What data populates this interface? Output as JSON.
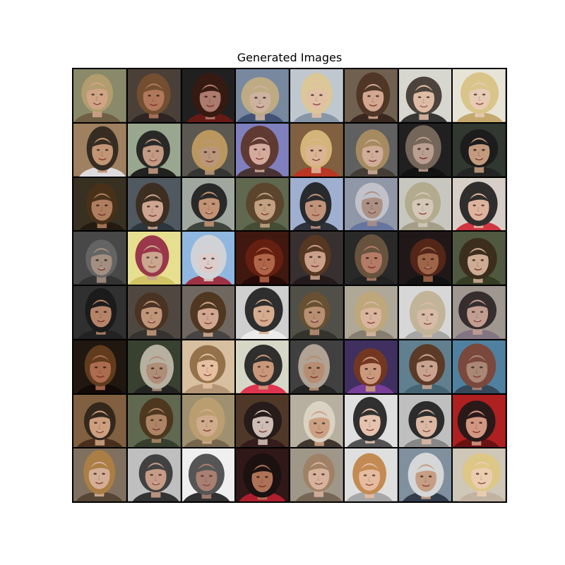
{
  "figure": {
    "title": "Generated Images",
    "grid": {
      "rows": 8,
      "columns": 8
    },
    "tiles": [
      {
        "bg": "#8a8a6a",
        "hair": "#b8a070",
        "skin": "#d9a98a",
        "acc": "#6b5a40"
      },
      {
        "bg": "#4a4038",
        "hair": "#7a5030",
        "skin": "#c08060",
        "acc": "#2a2020"
      },
      {
        "bg": "#202020",
        "hair": "#3a1a10",
        "skin": "#c08878",
        "acc": "#701a14"
      },
      {
        "bg": "#7888a0",
        "hair": "#c8b080",
        "skin": "#d8b8a0",
        "acc": "#3a4a70"
      },
      {
        "bg": "#c0c8d0",
        "hair": "#e0c890",
        "skin": "#e8c0a0",
        "acc": "#8090a0"
      },
      {
        "bg": "#706050",
        "hair": "#4a3020",
        "skin": "#e0b098",
        "acc": "#302018"
      },
      {
        "bg": "#d8d8d0",
        "hair": "#3a3028",
        "skin": "#e0b8a0",
        "acc": "#202020"
      },
      {
        "bg": "#e8e4d8",
        "hair": "#d8c080",
        "skin": "#e8c8b0",
        "acc": "#c0a060"
      },
      {
        "bg": "#a08060",
        "hair": "#2a2018",
        "skin": "#c89878",
        "acc": "#e8e8f0"
      },
      {
        "bg": "#9aa890",
        "hair": "#181818",
        "skin": "#c89880",
        "acc": "#101010"
      },
      {
        "bg": "#5a5850",
        "hair": "#c8a060",
        "skin": "#c8a080",
        "acc": "#303030"
      },
      {
        "bg": "#8080c0",
        "hair": "#5a3020",
        "skin": "#e0b098",
        "acc": "#402820"
      },
      {
        "bg": "#806040",
        "hair": "#e0c080",
        "skin": "#e8c0a0",
        "acc": "#c03020"
      },
      {
        "bg": "#606060",
        "hair": "#b09060",
        "skin": "#e0b8a0",
        "acc": "#403830"
      },
      {
        "bg": "#202020",
        "hair": "#807060",
        "skin": "#d0b0a0",
        "acc": "#101010"
      },
      {
        "bg": "#303830",
        "hair": "#181818",
        "skin": "#d8a888",
        "acc": "#202020"
      },
      {
        "bg": "#383020",
        "hair": "#4a3018",
        "skin": "#c08868",
        "acc": "#201810"
      },
      {
        "bg": "#505860",
        "hair": "#3a2818",
        "skin": "#e0b098",
        "acc": "#283038"
      },
      {
        "bg": "#a0a8a0",
        "hair": "#181818",
        "skin": "#c89070",
        "acc": "#303830"
      },
      {
        "bg": "#606850",
        "hair": "#5a4028",
        "skin": "#d0a888",
        "acc": "#404830"
      },
      {
        "bg": "#a0b0d0",
        "hair": "#181818",
        "skin": "#c89070",
        "acc": "#202028"
      },
      {
        "bg": "#9098a8",
        "hair": "#c8c8d0",
        "skin": "#b09080",
        "acc": "#6070a0"
      },
      {
        "bg": "#c8c8c0",
        "hair": "#b0a888",
        "skin": "#d8c8b8",
        "acc": "#a09880"
      },
      {
        "bg": "#d8d0c8",
        "hair": "#181818",
        "skin": "#e0b098",
        "acc": "#d02030"
      },
      {
        "bg": "#484848",
        "hair": "#686868",
        "skin": "#b09888",
        "acc": "#303030"
      },
      {
        "bg": "#e8e090",
        "hair": "#902040",
        "skin": "#c8a090",
        "acc": "#d0c060"
      },
      {
        "bg": "#90b8e0",
        "hair": "#d8d8d8",
        "skin": "#e8d0c8",
        "acc": "#a02030"
      },
      {
        "bg": "#401810",
        "hair": "#6a2010",
        "skin": "#c07050",
        "acc": "#200808"
      },
      {
        "bg": "#383030",
        "hair": "#5a3820",
        "skin": "#e0b098",
        "acc": "#201818"
      },
      {
        "bg": "#2a2a2a",
        "hair": "#705840",
        "skin": "#c88870",
        "acc": "#202020"
      },
      {
        "bg": "#201818",
        "hair": "#5a2818",
        "skin": "#b07050",
        "acc": "#101010"
      },
      {
        "bg": "#505840",
        "hair": "#3a2818",
        "skin": "#e0b8a0",
        "acc": "#303820"
      },
      {
        "bg": "#303030",
        "hair": "#181818",
        "skin": "#c89070",
        "acc": "#202020"
      },
      {
        "bg": "#504840",
        "hair": "#4a3020",
        "skin": "#d0a080",
        "acc": "#303030"
      },
      {
        "bg": "#706860",
        "hair": "#4a3018",
        "skin": "#e0b098",
        "acc": "#404040"
      },
      {
        "bg": "#d0d0d0",
        "hair": "#181818",
        "skin": "#d8a888",
        "acc": "#f0f0f0"
      },
      {
        "bg": "#505048",
        "hair": "#6a5030",
        "skin": "#c89878",
        "acc": "#303028"
      },
      {
        "bg": "#b0a898",
        "hair": "#c0a878",
        "skin": "#e0b8a0",
        "acc": "#807868"
      },
      {
        "bg": "#d8d8d8",
        "hair": "#c0b090",
        "skin": "#d8b8a0",
        "acc": "#a0a0a0"
      },
      {
        "bg": "#a09890",
        "hair": "#282020",
        "skin": "#c8a090",
        "acc": "#807080"
      },
      {
        "bg": "#201810",
        "hair": "#6a4020",
        "skin": "#c07858",
        "acc": "#100808"
      },
      {
        "bg": "#384030",
        "hair": "#c8c0b0",
        "skin": "#c09880",
        "acc": "#202020"
      },
      {
        "bg": "#d8c0a0",
        "hair": "#8a6840",
        "skin": "#e8c0a0",
        "acc": "#b09070"
      },
      {
        "bg": "#d8d8c8",
        "hair": "#181818",
        "skin": "#c89070",
        "acc": "#e02040"
      },
      {
        "bg": "#404040",
        "hair": "#c0b0a0",
        "skin": "#c89878",
        "acc": "#202020"
      },
      {
        "bg": "#403060",
        "hair": "#7a3818",
        "skin": "#e0a880",
        "acc": "#8040a0"
      },
      {
        "bg": "#608090",
        "hair": "#5a3018",
        "skin": "#d8a890",
        "acc": "#406070"
      },
      {
        "bg": "#5080a0",
        "hair": "#804030",
        "skin": "#b88870",
        "acc": "#304050"
      },
      {
        "bg": "#806040",
        "hair": "#2a2018",
        "skin": "#d8a888",
        "acc": "#402818"
      },
      {
        "bg": "#606850",
        "hair": "#4a3018",
        "skin": "#b88868",
        "acc": "#303828"
      },
      {
        "bg": "#a09070",
        "hair": "#c0a070",
        "skin": "#d8b090",
        "acc": "#706048"
      },
      {
        "bg": "#503828",
        "hair": "#201818",
        "skin": "#e0d0c8",
        "acc": "#301818"
      },
      {
        "bg": "#b8b0a0",
        "hair": "#e0d8c8",
        "skin": "#d0a080",
        "acc": "#302820"
      },
      {
        "bg": "#e0e0e0",
        "hair": "#181818",
        "skin": "#e8c0a8",
        "acc": "#404040"
      },
      {
        "bg": "#c0c0c0",
        "hair": "#181818",
        "skin": "#e0b8a0",
        "acc": "#808080"
      },
      {
        "bg": "#b02020",
        "hair": "#181818",
        "skin": "#d8a890",
        "acc": "#601010"
      },
      {
        "bg": "#807060",
        "hair": "#b08040",
        "skin": "#e0b8a0",
        "acc": "#504030"
      },
      {
        "bg": "#c0c0c0",
        "hair": "#303030",
        "skin": "#c89880",
        "acc": "#202020"
      },
      {
        "bg": "#f0f0f0",
        "hair": "#404040",
        "skin": "#a07060",
        "acc": "#181818"
      },
      {
        "bg": "#301818",
        "hair": "#181010",
        "skin": "#c08060",
        "acc": "#c02030"
      },
      {
        "bg": "#a09888",
        "hair": "#a08060",
        "skin": "#e0b8a0",
        "acc": "#706050"
      },
      {
        "bg": "#e0e0e0",
        "hair": "#c08040",
        "skin": "#e8b898",
        "acc": "#a0a0a0"
      },
      {
        "bg": "#8090a0",
        "hair": "#e0e0e0",
        "skin": "#d0a080",
        "acc": "#283040"
      },
      {
        "bg": "#d0c8b8",
        "hair": "#e0c880",
        "skin": "#f0d0b0",
        "acc": "#c0b0a0"
      }
    ]
  }
}
